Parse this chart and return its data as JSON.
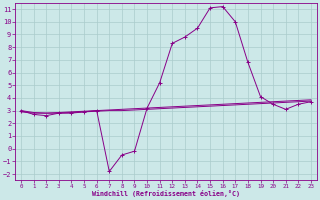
{
  "xlabel": "Windchill (Refroidissement éolien,°C)",
  "xlim": [
    -0.5,
    23.5
  ],
  "ylim": [
    -2.5,
    11.5
  ],
  "xticks": [
    0,
    1,
    2,
    3,
    4,
    5,
    6,
    7,
    8,
    9,
    10,
    11,
    12,
    13,
    14,
    15,
    16,
    17,
    18,
    19,
    20,
    21,
    22,
    23
  ],
  "yticks": [
    -2,
    -1,
    0,
    1,
    2,
    3,
    4,
    5,
    6,
    7,
    8,
    9,
    10,
    11
  ],
  "bg_color": "#cce8e8",
  "line_color": "#880088",
  "grid_color": "#aacccc",
  "line1_x": [
    0,
    1,
    2,
    3,
    4,
    5,
    6,
    7,
    8,
    9,
    10,
    11,
    12,
    13,
    14,
    15,
    16,
    17,
    18,
    19,
    20,
    21,
    22,
    23
  ],
  "line1_y": [
    3.0,
    2.7,
    2.6,
    2.8,
    2.8,
    2.9,
    3.0,
    -1.8,
    -0.5,
    -0.2,
    3.2,
    5.2,
    8.3,
    8.8,
    9.5,
    11.1,
    11.2,
    10.0,
    6.8,
    4.1,
    3.5,
    3.1,
    3.5,
    3.7
  ],
  "line2_x": [
    0,
    1,
    2,
    3,
    4,
    5,
    6,
    7,
    8,
    9,
    10,
    11,
    12,
    13,
    14,
    15,
    16,
    17,
    18,
    19,
    20,
    21,
    22,
    23
  ],
  "line2_y": [
    2.9,
    2.8,
    2.8,
    2.85,
    2.9,
    2.95,
    3.0,
    3.05,
    3.1,
    3.15,
    3.2,
    3.25,
    3.3,
    3.35,
    3.4,
    3.45,
    3.5,
    3.55,
    3.6,
    3.65,
    3.7,
    3.75,
    3.8,
    3.85
  ],
  "line3_x": [
    0,
    1,
    2,
    3,
    4,
    5,
    6,
    7,
    8,
    9,
    10,
    11,
    12,
    13,
    14,
    15,
    16,
    17,
    18,
    19,
    20,
    21,
    22,
    23
  ],
  "line3_y": [
    3.0,
    2.85,
    2.8,
    2.8,
    2.85,
    2.9,
    2.95,
    3.0,
    3.0,
    3.05,
    3.1,
    3.15,
    3.2,
    3.25,
    3.3,
    3.35,
    3.4,
    3.45,
    3.5,
    3.55,
    3.6,
    3.65,
    3.7,
    3.75
  ]
}
